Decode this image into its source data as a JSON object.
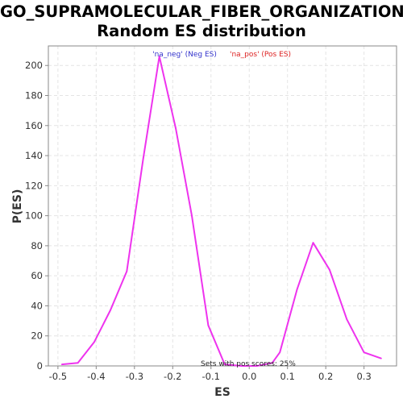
{
  "title_line1": "GO_SUPRAMOLECULAR_FIBER_ORGANIZATION:",
  "title_line2": "Random ES distribution",
  "chart_data": {
    "type": "line",
    "title": "GO_SUPRAMOLECULAR_FIBER_ORGANIZATION: Random ES distribution",
    "xlabel": "ES",
    "ylabel": "P(ES)",
    "xlim": [
      -0.525,
      0.385
    ],
    "ylim": [
      0,
      213
    ],
    "xticks": [
      -0.5,
      -0.4,
      -0.3,
      -0.2,
      -0.1,
      0.0,
      0.1,
      0.2,
      0.3
    ],
    "xtick_labels": [
      "-0.5",
      "-0.4",
      "-0.3",
      "-0.2",
      "-0.1",
      "0.0",
      "0.1",
      "0.2",
      "0.3"
    ],
    "yticks": [
      0,
      20,
      40,
      60,
      80,
      100,
      120,
      140,
      160,
      180,
      200
    ],
    "ytick_labels": [
      "0",
      "20",
      "40",
      "60",
      "80",
      "100",
      "120",
      "140",
      "160",
      "180",
      "200"
    ],
    "grid": true,
    "legend_position": "top-center",
    "legend": [
      {
        "label": "'na_neg' (Neg ES)",
        "color": "#3333cc"
      },
      {
        "label": "'na_pos' (Pos ES)",
        "color": "#dd2222"
      }
    ],
    "annotation": "Sets with pos scores: 25%",
    "series": [
      {
        "color": "#ee33ee",
        "x": [
          -0.49,
          -0.448,
          -0.405,
          -0.363,
          -0.32,
          -0.277,
          -0.235,
          -0.192,
          -0.15,
          -0.107,
          -0.064,
          -0.02,
          0.02,
          0.06,
          0.08,
          0.125,
          0.167,
          0.21,
          0.255,
          0.3,
          0.345
        ],
        "y": [
          1,
          2,
          16,
          37,
          63,
          138,
          206,
          158,
          100,
          27,
          1,
          0,
          0,
          2,
          9,
          51,
          82,
          64,
          31,
          9,
          5
        ]
      }
    ]
  }
}
